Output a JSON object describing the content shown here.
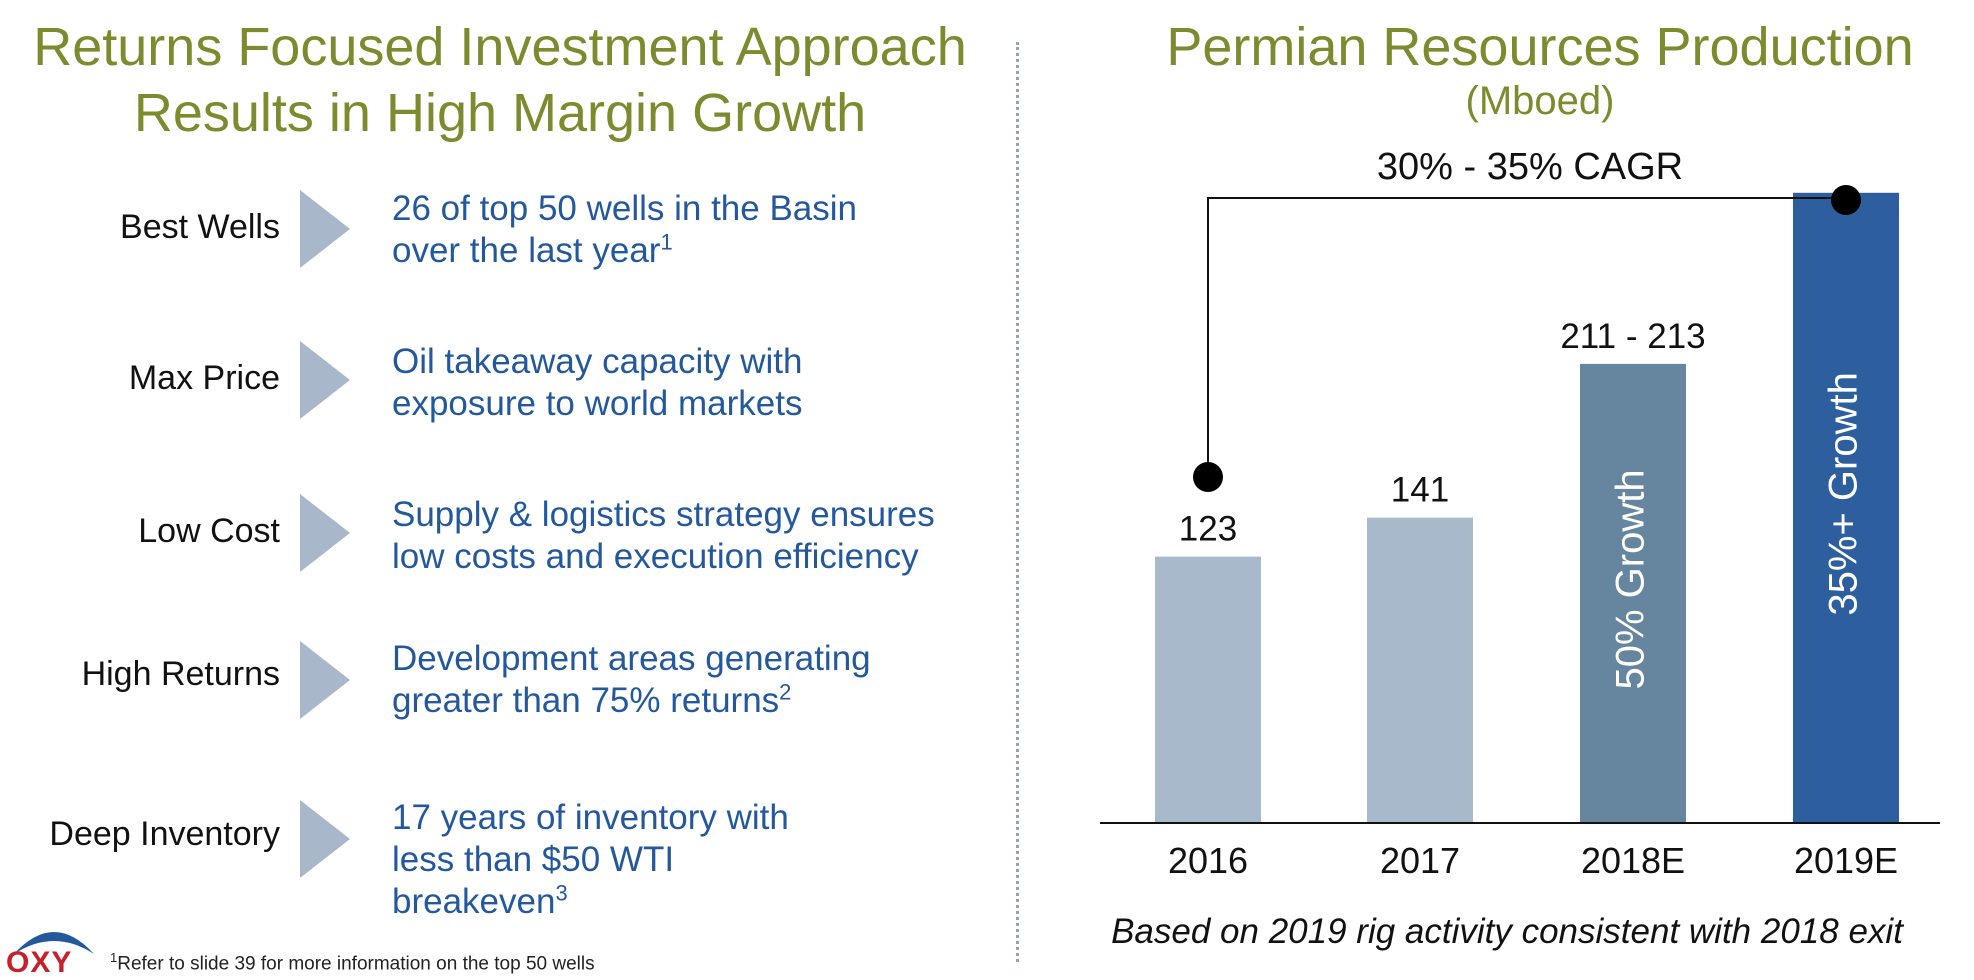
{
  "left": {
    "title_line1": "Returns Focused Investment Approach",
    "title_line2": "Results in High Margin Growth",
    "rows": [
      {
        "label": "Best Wells",
        "line1": "26 of top 50 wells in the Basin",
        "line2": "over the last year",
        "sup": "1"
      },
      {
        "label": "Max Price",
        "line1": "Oil takeaway capacity with",
        "line2": "exposure to world markets"
      },
      {
        "label": "Low Cost",
        "line1": "Supply & logistics strategy ensures",
        "line2": "low costs and execution efficiency"
      },
      {
        "label": "High Returns",
        "line1": "Development areas generating",
        "line2": "greater than 75% returns",
        "sup": "2"
      },
      {
        "label": "Deep Inventory",
        "line1": "17 years of inventory with",
        "line2": "less than $50 WTI",
        "line3": "breakeven",
        "sup": "3"
      }
    ]
  },
  "footnote": {
    "sup": "1",
    "text": "Refer to slide 39 for more information on the top 50 wells"
  },
  "logo": {
    "text": "OXY"
  },
  "colors": {
    "title_olive": "#7d8a2e",
    "text_blue": "#23599c",
    "arrow": "#a8b7c9",
    "bar_light": "#a8b9cc",
    "bar_mid": "#66869f",
    "bar_dark": "#2d5f9e",
    "logo_red": "#c8202b"
  },
  "chart_data": {
    "type": "bar",
    "title": "Permian Resources Production",
    "subtitle": "(Mboed)",
    "categories": [
      "2016",
      "2017",
      "2018E",
      "2019E"
    ],
    "values": [
      123,
      141,
      212,
      291
    ],
    "value_labels": [
      "123",
      "141",
      "211 - 213",
      ""
    ],
    "bar_annotations": [
      "",
      "",
      "50% Growth",
      "35%+ Growth"
    ],
    "bar_colors": [
      "#a8b9cc",
      "#a8b9cc",
      "#66869f",
      "#2d5f9e"
    ],
    "bracket_annotation": "30% - 35% CAGR",
    "bracket_from": "2016",
    "bracket_to": "2019E",
    "ylim": [
      0,
      320
    ],
    "grid": false,
    "footnote": "Based on 2019 rig activity consistent with 2018 exit"
  }
}
